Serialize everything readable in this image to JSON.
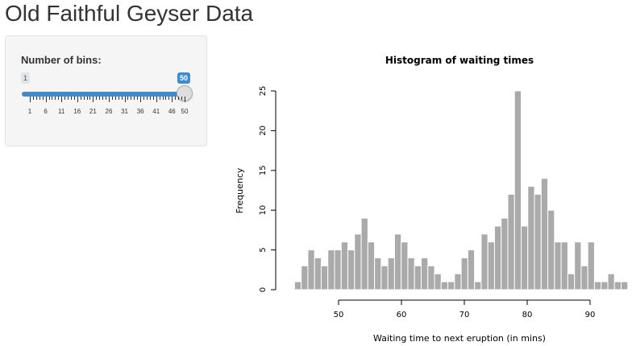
{
  "title": "Old Faithful Geyser Data",
  "sidebar": {
    "input_label": "Number of bins:",
    "slider": {
      "min": 1,
      "max": 50,
      "value": 50,
      "min_label": "1",
      "value_label": "50",
      "tick_labels": [
        "1",
        "6",
        "11",
        "16",
        "21",
        "26",
        "31",
        "36",
        "41",
        "46",
        "50"
      ],
      "tick_values": [
        1,
        6,
        11,
        16,
        21,
        26,
        31,
        36,
        41,
        46,
        50
      ],
      "accent_color": "#428bca"
    }
  },
  "chart_data": {
    "type": "bar",
    "title": "Histogram of waiting times",
    "xlabel": "Waiting time to next eruption (in mins)",
    "ylabel": "Frequency",
    "bin_start": 43,
    "bin_width": 1.06,
    "values": [
      1,
      3,
      5,
      4,
      3,
      5,
      5,
      6,
      5,
      7,
      9,
      6,
      4,
      3,
      4,
      7,
      6,
      4,
      3,
      4,
      3,
      2,
      1,
      1,
      2,
      4,
      5,
      1,
      7,
      6,
      8,
      9,
      12,
      25,
      8,
      13,
      12,
      14,
      10,
      6,
      6,
      2,
      6,
      3,
      6,
      1,
      1,
      2,
      1,
      1
    ],
    "xticks": [
      50,
      60,
      70,
      80,
      90
    ],
    "yticks": [
      0,
      5,
      10,
      15,
      20,
      25
    ],
    "ylim": [
      0,
      25
    ],
    "bar_color": "#aaaaaa",
    "bar_border": "#ffffff"
  }
}
